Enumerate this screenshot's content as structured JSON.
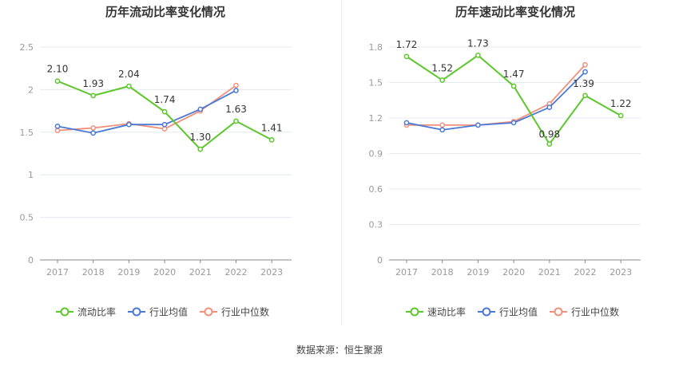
{
  "source_text": "数据来源：恒生聚源",
  "colors": {
    "company": "#5cc72a",
    "avg": "#4a78d6",
    "median": "#f0907a",
    "axis": "#999999",
    "grid": "#e4e8f0"
  },
  "chart_data": [
    {
      "type": "line",
      "title": "历年流动比率变化情况",
      "categories": [
        "2017",
        "2018",
        "2019",
        "2020",
        "2021",
        "2022",
        "2023"
      ],
      "ylim": [
        0,
        2.5
      ],
      "yticks": [
        "0",
        "0.5",
        "1",
        "1.5",
        "2",
        "2.5"
      ],
      "ytick_values": [
        0,
        0.5,
        1,
        1.5,
        2,
        2.5
      ],
      "grid": true,
      "legend": "bottom",
      "series": [
        {
          "name": "流动比率",
          "values": [
            2.1,
            1.93,
            2.04,
            1.74,
            1.3,
            1.63,
            1.41
          ],
          "labels": [
            "2.10",
            "1.93",
            "2.04",
            "1.74",
            "1.30",
            "1.63",
            "1.41"
          ]
        },
        {
          "name": "行业均值",
          "values": [
            1.57,
            1.49,
            1.59,
            1.59,
            1.77,
            1.99,
            null
          ]
        },
        {
          "name": "行业中位数",
          "values": [
            1.52,
            1.55,
            1.6,
            1.54,
            1.75,
            2.05,
            null
          ]
        }
      ]
    },
    {
      "type": "line",
      "title": "历年速动比率变化情况",
      "categories": [
        "2017",
        "2018",
        "2019",
        "2020",
        "2021",
        "2022",
        "2023"
      ],
      "ylim": [
        0,
        1.8
      ],
      "yticks": [
        "0",
        "0.3",
        "0.6",
        "0.9",
        "1.2",
        "1.5",
        "1.8"
      ],
      "ytick_values": [
        0,
        0.3,
        0.6,
        0.9,
        1.2,
        1.5,
        1.8
      ],
      "grid": true,
      "legend": "bottom",
      "series": [
        {
          "name": "速动比率",
          "values": [
            1.72,
            1.52,
            1.73,
            1.47,
            0.98,
            1.39,
            1.22
          ],
          "labels": [
            "1.72",
            "1.52",
            "1.73",
            "1.47",
            "0.98",
            "1.39",
            "1.22"
          ]
        },
        {
          "name": "行业均值",
          "values": [
            1.16,
            1.1,
            1.14,
            1.16,
            1.29,
            1.59,
            null
          ]
        },
        {
          "name": "行业中位数",
          "values": [
            1.14,
            1.14,
            1.14,
            1.17,
            1.32,
            1.65,
            null
          ]
        }
      ]
    }
  ]
}
